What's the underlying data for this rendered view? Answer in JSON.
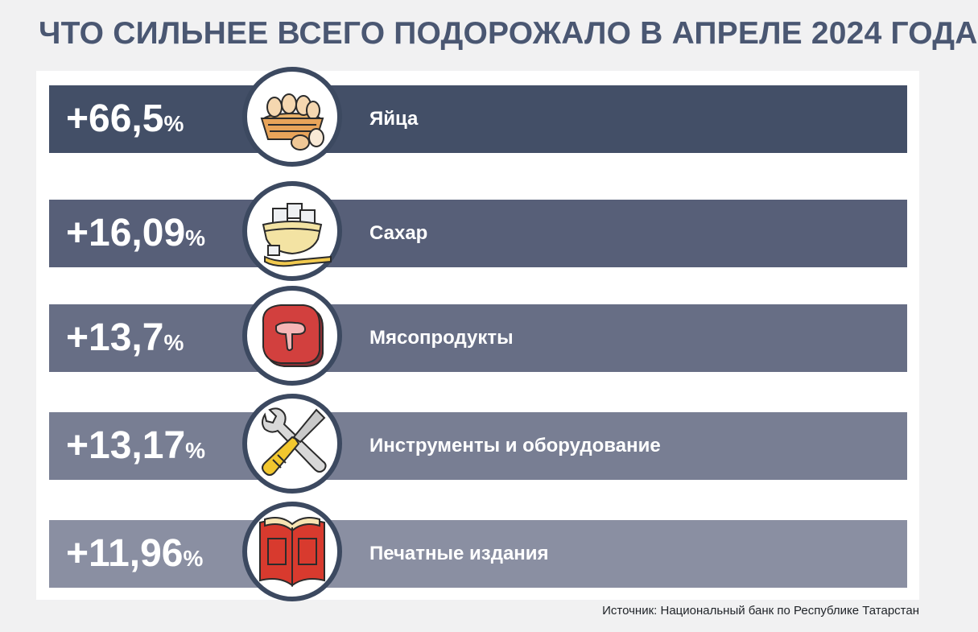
{
  "title": "ЧТО СИЛЬНЕЕ ВСЕГО ПОДОРОЖАЛО В АПРЕЛЕ 2024 ГОДА",
  "source": "Источник: Национальный банк по Республике Татарстан",
  "chart_data": {
    "type": "bar",
    "title": "ЧТО СИЛЬНЕЕ ВСЕГО ПОДОРОЖАЛО В АПРЕЛЕ 2024 ГОДА",
    "categories": [
      "Яйца",
      "Сахар",
      "Мясопродукты",
      "Инструменты и оборудование",
      "Печатные издания"
    ],
    "values": [
      66.5,
      16.09,
      13.7,
      13.17,
      11.96
    ],
    "unit": "%",
    "data_labels": [
      "+66,5",
      "+16,09",
      "+13,7",
      "+13,17",
      "+11,96"
    ],
    "percent_sign": "%",
    "icons": [
      "eggs-basket-icon",
      "sugar-bowl-icon",
      "steak-icon",
      "wrench-screwdriver-icon",
      "open-book-icon"
    ],
    "bar_colors": [
      "#434f67",
      "#575f78",
      "#676e85",
      "#787e93",
      "#8a8fa2"
    ],
    "icon_ring_color": "#3c4960"
  }
}
